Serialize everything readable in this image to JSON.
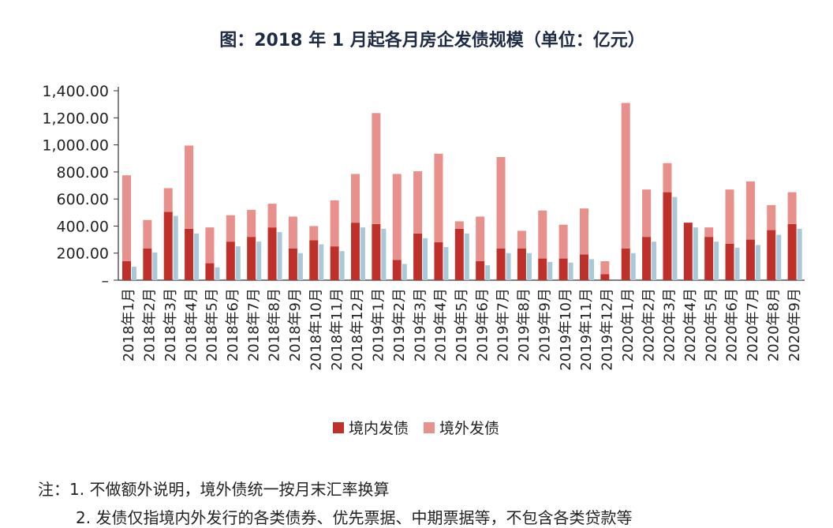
{
  "chart_data": {
    "type": "bar",
    "title": "图：2018 年 1 月起各月房企发债规模（单位：亿元）",
    "y_ticks": [
      "–",
      "200.00",
      "400.00",
      "600.00",
      "800.00",
      "1,000.00",
      "1,200.00",
      "1,400.00"
    ],
    "ylim": [
      0,
      1400
    ],
    "categories": [
      "2018年1月",
      "2018年2月",
      "2018年3月",
      "2018年4月",
      "2018年5月",
      "2018年6月",
      "2018年7月",
      "2018年8月",
      "2018年9月",
      "2018年10月",
      "2018年11月",
      "2018年12月",
      "2019年1月",
      "2019年2月",
      "2019年3月",
      "2019年4月",
      "2019年5月",
      "2019年6月",
      "2019年7月",
      "2019年8月",
      "2019年9月",
      "2019年10月",
      "2019年11月",
      "2019年12月",
      "2020年1月",
      "2020年2月",
      "2020年3月",
      "2020年4月",
      "2020年5月",
      "2020年6月",
      "2020年7月",
      "2020年8月",
      "2020年9月"
    ],
    "series": [
      {
        "name": "境内发债",
        "color": "#c0302a",
        "values": [
          140,
          235,
          505,
          380,
          125,
          285,
          320,
          390,
          235,
          295,
          250,
          425,
          415,
          150,
          345,
          280,
          380,
          140,
          235,
          235,
          160,
          160,
          190,
          45,
          235,
          320,
          650,
          425,
          320,
          270,
          300,
          370,
          415
        ]
      },
      {
        "name": "境外发债",
        "color": "#e8908c",
        "values": [
          635,
          210,
          175,
          615,
          265,
          195,
          200,
          175,
          235,
          105,
          340,
          360,
          820,
          635,
          460,
          655,
          55,
          330,
          675,
          130,
          355,
          250,
          340,
          95,
          1075,
          350,
          215,
          0,
          70,
          400,
          430,
          185,
          235
        ]
      }
    ],
    "third_series_color": "#a9c8d8",
    "third_series_values": [
      100,
      205,
      475,
      345,
      95,
      250,
      285,
      355,
      200,
      265,
      215,
      390,
      380,
      120,
      310,
      245,
      345,
      110,
      200,
      200,
      135,
      130,
      155,
      0,
      200,
      285,
      615,
      390,
      285,
      240,
      260,
      335,
      380
    ],
    "legend": {
      "position": "bottom"
    },
    "grid": false
  },
  "notes": {
    "prefix": "注：",
    "line1": "1. 不做额外说明，境外债统一按月末汇率换算",
    "line2": "2. 发债仅指境内外发行的各类债券、优先票据、中期票据等，不包含各类贷款等"
  }
}
